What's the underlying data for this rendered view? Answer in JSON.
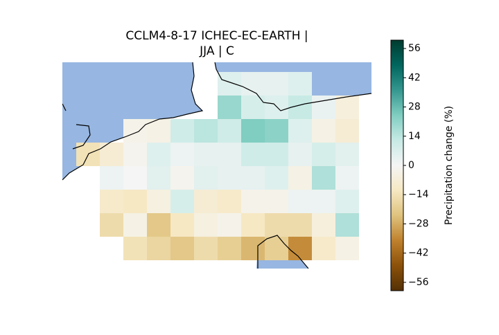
{
  "chart_data": {
    "type": "heatmap",
    "title": [
      "CCLM4-8-17 ICHEC-EC-EARTH |",
      "JJA | C"
    ],
    "colormap": [
      "#543005",
      "#8c510a",
      "#bf812d",
      "#dfc27d",
      "#f6e8c3",
      "#f5f5f5",
      "#c7eae5",
      "#80cdc1",
      "#35978f",
      "#01665e",
      "#003c30"
    ],
    "values": [
      [
        null,
        null,
        null,
        null,
        null,
        null,
        6,
        4,
        4,
        6,
        null,
        null
      ],
      [
        null,
        null,
        null,
        null,
        null,
        null,
        20,
        8,
        6,
        12,
        3,
        -6
      ],
      [
        null,
        null,
        -3,
        -4,
        10,
        14,
        10,
        24,
        22,
        6,
        -4,
        -8
      ],
      [
        -14,
        -8,
        -2,
        6,
        2,
        4,
        4,
        10,
        10,
        4,
        8,
        5
      ],
      [
        null,
        2,
        0,
        5,
        -2,
        5,
        4,
        4,
        6,
        -4,
        16,
        2
      ],
      [
        null,
        -10,
        -12,
        -5,
        8,
        -8,
        -10,
        -3,
        -3,
        2,
        2,
        6
      ],
      [
        null,
        -16,
        -4,
        -22,
        -12,
        -5,
        -3,
        -12,
        -16,
        -16,
        -6,
        16
      ],
      [
        null,
        null,
        -14,
        -18,
        -22,
        -16,
        -20,
        -26,
        -20,
        -34,
        -10,
        -4
      ]
    ],
    "colorbar": {
      "label": "Precipitation change (%)",
      "lim": [
        -60,
        60
      ],
      "ticks": [
        {
          "value": -56,
          "label": "−56"
        },
        {
          "value": -42,
          "label": "−42"
        },
        {
          "value": -28,
          "label": "−28"
        },
        {
          "value": -14,
          "label": "−14"
        },
        0,
        14,
        28,
        42,
        56
      ]
    }
  }
}
